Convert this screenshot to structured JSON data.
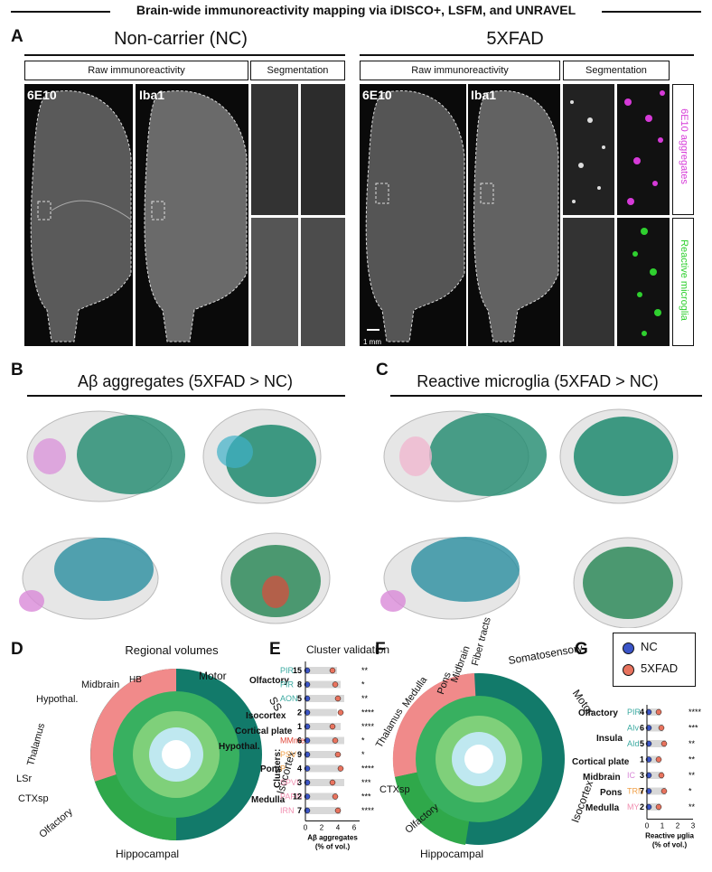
{
  "title": "Brain-wide immunoreactivity mapping via iDISCO+, LSFM, and UNRAVEL",
  "panelA": {
    "letter": "A",
    "nc_title": "Non-carrier (NC)",
    "xfad_title": "5XFAD",
    "raw_label": "Raw immunoreactivity",
    "seg_label": "Segmentation",
    "stain1": "6E10",
    "stain2": "Iba1",
    "scalebar": "1 mm",
    "side_top": "6E10 aggregates",
    "side_bottom": "Reactive microglia",
    "colors": {
      "aggregates": "#d63ad8",
      "microglia": "#2fd02f"
    }
  },
  "panelB": {
    "letter": "B",
    "title": "Aβ aggregates (5XFAD > NC)"
  },
  "panelC": {
    "letter": "C",
    "title": "Reactive microglia (5XFAD > NC)"
  },
  "panelD": {
    "letter": "D",
    "title": "Regional volumes",
    "labels": [
      "HB",
      "Midbrain",
      "Hypothal.",
      "Thalamus",
      "LSr",
      "CTXsp",
      "Olfactory",
      "Hippocampal",
      "Isocortex",
      "SS",
      "Motor"
    ]
  },
  "panelF": {
    "letter": "F",
    "labels": [
      "Fiber tracts",
      "Somatosensory",
      "Midbrain",
      "Pons",
      "Medulla",
      "Thalamus",
      "CTXsp",
      "Olfactory",
      "Hippocampal",
      "Isocortex",
      "Motor"
    ]
  },
  "panelE": {
    "letter": "E",
    "title": "Cluster validation",
    "ylabel": "Clusters:",
    "xlabel_line1": "Aβ aggregates",
    "xlabel_line2": "(% of vol.)",
    "ticks": [
      "0",
      "2",
      "4",
      "6"
    ],
    "groups": [
      "Olfactory",
      "Isocortex",
      "Cortical plate",
      "Hypothal.",
      "Pons",
      "Medulla"
    ],
    "rows": [
      {
        "region": "PIR",
        "color": "#3aa9a0",
        "cluster": "15",
        "sig": "**"
      },
      {
        "region": "PIR",
        "color": "#3aa9a0",
        "cluster": "8",
        "sig": "*"
      },
      {
        "region": "AON",
        "color": "#3aa9a0",
        "cluster": "5",
        "sig": "**"
      },
      {
        "region": "",
        "color": "#111",
        "cluster": "2",
        "sig": "****"
      },
      {
        "region": "",
        "color": "#111",
        "cluster": "1",
        "sig": "****"
      },
      {
        "region": "MMme",
        "color": "#e0483b",
        "cluster": "6",
        "sig": "*"
      },
      {
        "region": "PSV",
        "color": "#f0a14a",
        "cluster": "9",
        "sig": "*"
      },
      {
        "region": "P",
        "color": "#f0a14a",
        "cluster": "4",
        "sig": "****"
      },
      {
        "region": "SPVI",
        "color": "#f08fb0",
        "cluster": "3",
        "sig": "***"
      },
      {
        "region": "PARN",
        "color": "#f08fb0",
        "cluster": "12",
        "sig": "***"
      },
      {
        "region": "IRN",
        "color": "#f08fb0",
        "cluster": "7",
        "sig": "****"
      }
    ]
  },
  "panelG": {
    "letter": "G",
    "legend_nc": "NC",
    "legend_xfad": "5XFAD",
    "xlabel_line1": "Reactive μglia",
    "xlabel_line2": "(% of vol.)",
    "ticks": [
      "0",
      "1",
      "2",
      "3"
    ],
    "groups": [
      "Olfactory",
      "Insula",
      "Cortical plate",
      "Midbrain",
      "Pons",
      "Medulla"
    ],
    "rows": [
      {
        "region": "PIR",
        "color": "#3aa9a0",
        "cluster": "4",
        "sig": "****"
      },
      {
        "region": "AIv",
        "color": "#3aa9a0",
        "cluster": "6",
        "sig": "***"
      },
      {
        "region": "AId",
        "color": "#3aa9a0",
        "cluster": "5",
        "sig": "**"
      },
      {
        "region": "",
        "color": "#111",
        "cluster": "1",
        "sig": "**"
      },
      {
        "region": "IC",
        "color": "#d98ad8",
        "cluster": "3",
        "sig": "**"
      },
      {
        "region": "TRN",
        "color": "#f0a14a",
        "cluster": "7",
        "sig": "*"
      },
      {
        "region": "MY",
        "color": "#f08fb0",
        "cluster": "2",
        "sig": "**"
      }
    ]
  },
  "colors": {
    "nc": "#3b55c8",
    "xfad": "#e8735e"
  }
}
